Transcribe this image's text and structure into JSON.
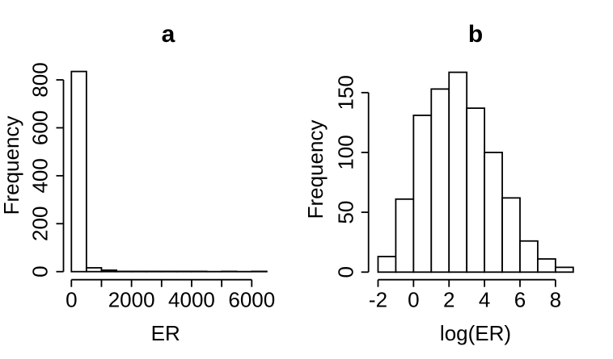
{
  "figure": {
    "background_color": "#ffffff",
    "line_color": "#000000",
    "bar_fill_color": "#ffffff"
  },
  "chart_data": [
    {
      "type": "bar",
      "chart_kind": "histogram",
      "title": "a",
      "xlabel": "ER",
      "ylabel": "Frequency",
      "bin_edges": [
        0,
        500,
        1000,
        1500,
        2000,
        2500,
        3000,
        3500,
        4000,
        4500,
        5000,
        5500,
        6000,
        6500
      ],
      "values": [
        835,
        16,
        6,
        1,
        1,
        1,
        1,
        1,
        1,
        0,
        1,
        0,
        1
      ],
      "x_ticks": [
        0,
        1000,
        2000,
        3000,
        4000,
        5000,
        6000
      ],
      "x_tick_labels": [
        "0",
        "",
        "2000",
        "",
        "4000",
        "",
        "6000"
      ],
      "y_ticks": [
        0,
        200,
        400,
        600,
        800
      ],
      "y_tick_labels": [
        "0",
        "200",
        "400",
        "600",
        "800"
      ],
      "xlim": [
        0,
        6500
      ],
      "ylim": [
        0,
        835
      ],
      "grid": false,
      "legend": "none"
    },
    {
      "type": "bar",
      "chart_kind": "histogram",
      "title": "b",
      "xlabel": "log(ER)",
      "ylabel": "Frequency",
      "bin_edges": [
        -2,
        -1,
        0,
        1,
        2,
        3,
        4,
        5,
        6,
        7,
        8,
        9
      ],
      "values": [
        13,
        61,
        131,
        153,
        167,
        137,
        100,
        62,
        26,
        11,
        4
      ],
      "x_ticks": [
        -2,
        0,
        2,
        4,
        6,
        8
      ],
      "x_tick_labels": [
        "-2",
        "0",
        "2",
        "4",
        "6",
        "8"
      ],
      "y_ticks": [
        0,
        50,
        100,
        150
      ],
      "y_tick_labels": [
        "0",
        "50",
        "100",
        "150"
      ],
      "xlim": [
        -2,
        9
      ],
      "ylim": [
        0,
        167
      ],
      "grid": false,
      "legend": "none"
    }
  ]
}
